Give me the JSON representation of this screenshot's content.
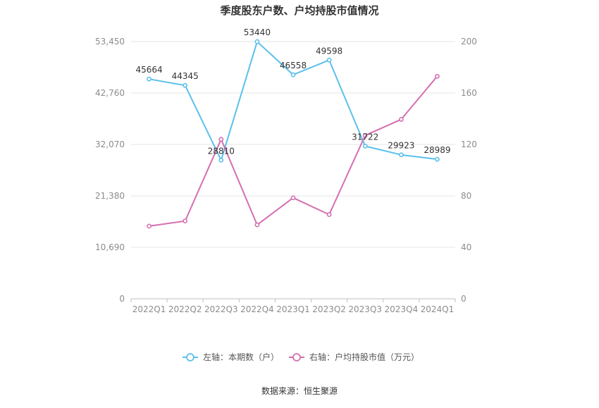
{
  "chart_data": {
    "type": "line",
    "title": "季度股东户数、户均持股市值情况",
    "categories": [
      "2022Q1",
      "2022Q2",
      "2022Q3",
      "2022Q4",
      "2023Q1",
      "2023Q2",
      "2023Q3",
      "2023Q4",
      "2024Q1"
    ],
    "left_axis": {
      "ticks": [
        "0",
        "10,690",
        "21,380",
        "32,070",
        "42,760",
        "53,450"
      ],
      "ylim": [
        0,
        53450
      ]
    },
    "right_axis": {
      "ticks": [
        "0",
        "40",
        "80",
        "120",
        "160",
        "200"
      ],
      "ylim": [
        0,
        200
      ]
    },
    "series": [
      {
        "name": "左轴：本期数（户）",
        "axis": "left",
        "color": "#5bc0eb",
        "values": [
          45664,
          44345,
          28810,
          53440,
          46558,
          49598,
          31722,
          29923,
          28989
        ],
        "labels": [
          "45664",
          "44345",
          "28810",
          "53440",
          "46558",
          "49598",
          "31722",
          "29923",
          "28989"
        ]
      },
      {
        "name": "右轴：户均持股市值（万元）",
        "axis": "right",
        "color": "#d56fb0",
        "values": [
          56.5,
          60.5,
          124,
          57.5,
          78.5,
          65.5,
          127,
          139.5,
          173
        ]
      }
    ],
    "grid": true,
    "legend_position": "bottom-center",
    "source": "数据来源：恒生聚源"
  }
}
